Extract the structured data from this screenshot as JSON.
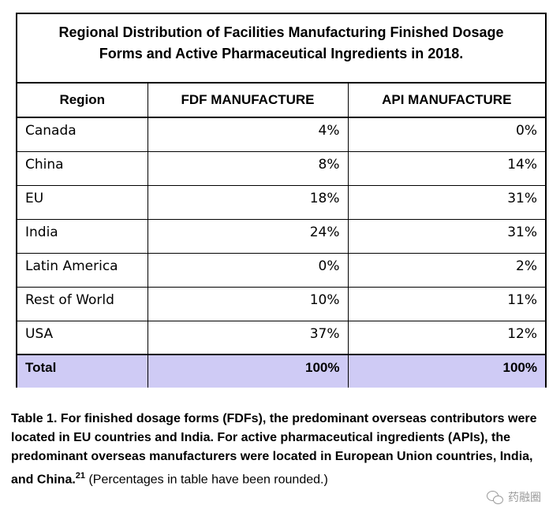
{
  "table": {
    "title_line1": "Regional Distribution of Facilities Manufacturing Finished Dosage",
    "title_line2": "Forms and Active Pharmaceutical Ingredients in 2018.",
    "headers": [
      "Region",
      "FDF MANUFACTURE",
      "API MANUFACTURE"
    ],
    "rows": [
      {
        "region": "Canada",
        "fdf": "4%",
        "api": "0%"
      },
      {
        "region": "China",
        "fdf": "8%",
        "api": "14%"
      },
      {
        "region": "EU",
        "fdf": "18%",
        "api": "31%"
      },
      {
        "region": "India",
        "fdf": "24%",
        "api": "31%"
      },
      {
        "region": "Latin America",
        "fdf": "0%",
        "api": "2%"
      },
      {
        "region": "Rest of World",
        "fdf": "10%",
        "api": "11%"
      },
      {
        "region": "USA",
        "fdf": "37%",
        "api": "12%"
      }
    ],
    "total": {
      "region": "Total",
      "fdf": "100%",
      "api": "100%"
    },
    "total_bg_color": "#cfcbf5"
  },
  "caption": {
    "bold_text": "Table 1. For finished dosage forms (FDFs), the predominant overseas contributors were located in EU countries and India. For active pharmaceutical ingredients (APIs), the predominant overseas manufacturers were located in European Union countries, India, and China.",
    "superscript": "21",
    "normal_text": " (Percentages in table have been rounded.)"
  },
  "watermark": {
    "icon": "wechat-icon",
    "text": "药融圈"
  }
}
